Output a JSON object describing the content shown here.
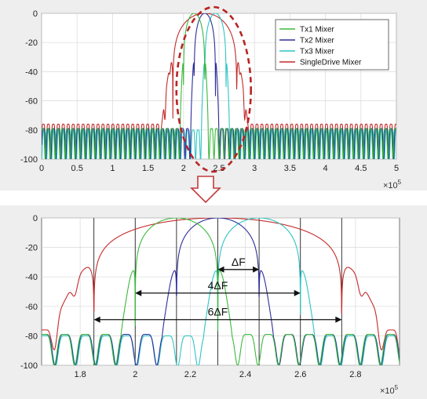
{
  "colors": {
    "tx1": "#3cb83c",
    "tx2": "#2e2e9c",
    "tx3": "#2fc4c4",
    "single": "#c42a2a",
    "ellipse": "#b82424",
    "arrow": "#c23a3a",
    "axis_bg": "#eeeeee",
    "plot_bg": "#ffffff",
    "annotation": "#111111"
  },
  "chart_data": [
    {
      "type": "line",
      "xlim": [
        0,
        500000
      ],
      "ylim": [
        -100,
        0
      ],
      "x_ticks": [
        0,
        50000,
        100000,
        150000,
        200000,
        250000,
        300000,
        350000,
        400000,
        450000,
        500000
      ],
      "x_tick_labels": [
        "0",
        "0.5",
        "1",
        "1.5",
        "2",
        "2.5",
        "3",
        "3.5",
        "4",
        "4.5",
        "5"
      ],
      "x_exponent_label": "×10",
      "x_exponent_power": "5",
      "y_ticks": [
        0,
        -20,
        -40,
        -60,
        -80,
        -100
      ],
      "y_tick_labels": [
        "0",
        "-20",
        "-40",
        "-60",
        "-80",
        "-100"
      ],
      "grid": true,
      "legend_position": "top-right",
      "series": [
        {
          "name": "Tx1 Mixer",
          "color_key": "tx1",
          "center": 215000,
          "half_width": 15000,
          "floor": -79
        },
        {
          "name": "Tx2 Mixer",
          "color_key": "tx2",
          "center": 230000,
          "half_width": 15000,
          "floor": -79
        },
        {
          "name": "Tx3 Mixer",
          "color_key": "tx3",
          "center": 245000,
          "half_width": 15000,
          "floor": -80
        },
        {
          "name": "SingleDrive Mixer",
          "color_key": "single",
          "center": 230000,
          "half_width": 45000,
          "floor": -76
        }
      ],
      "highlight": {
        "shape": "ellipse",
        "x_range": [
          190000,
          295000
        ],
        "y_range": [
          -100,
          0
        ]
      }
    },
    {
      "type": "line",
      "xlim": [
        166000,
        296000
      ],
      "ylim": [
        -100,
        0
      ],
      "x_ticks": [
        180000,
        200000,
        220000,
        240000,
        260000,
        280000
      ],
      "x_tick_labels": [
        "1.8",
        "2",
        "2.2",
        "2.4",
        "2.6",
        "2.8"
      ],
      "x_exponent_label": "×10",
      "x_exponent_power": "5",
      "y_ticks": [
        0,
        -20,
        -40,
        -60,
        -80,
        -100
      ],
      "y_tick_labels": [
        "0",
        "-20",
        "-40",
        "-60",
        "-80",
        "-100"
      ],
      "grid": true,
      "vertical_markers": [
        185000,
        200000,
        215000,
        230000,
        245000,
        260000,
        275000
      ],
      "annotations": [
        {
          "label": "ΔF",
          "x_from": 230000,
          "x_to": 245000,
          "y": -35
        },
        {
          "label": "4ΔF",
          "x_from": 200000,
          "x_to": 260000,
          "y": -51
        },
        {
          "label": "6ΔF",
          "x_from": 185000,
          "x_to": 275000,
          "y": -69
        }
      ]
    }
  ]
}
